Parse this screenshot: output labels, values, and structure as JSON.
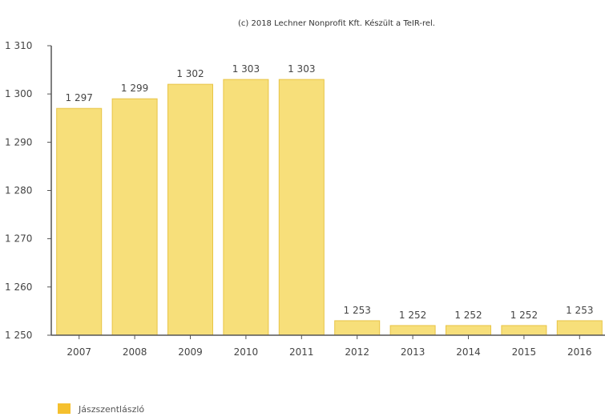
{
  "copyright": "(c) 2018 Lechner Nonprofit Kft. Készült a TeIR-rel.",
  "colors": {
    "bar_fill": "#f7df7a",
    "bar_stroke": "#e8c445",
    "legend_swatch": "#f5c02e",
    "axis": "#555555"
  },
  "chart_data": {
    "type": "bar",
    "categories": [
      "2007",
      "2008",
      "2009",
      "2010",
      "2011",
      "2012",
      "2013",
      "2014",
      "2015",
      "2016"
    ],
    "series": [
      {
        "name": "Jászszentlászló",
        "values": [
          1297,
          1299,
          1302,
          1303,
          1303,
          1253,
          1252,
          1252,
          1252,
          1253
        ],
        "value_labels": [
          "1 297",
          "1 299",
          "1 302",
          "1 303",
          "1 303",
          "1 253",
          "1 252",
          "1 252",
          "1 252",
          "1 253"
        ]
      }
    ],
    "ylim": [
      1250,
      1310
    ],
    "yticks": [
      1250,
      1260,
      1270,
      1280,
      1290,
      1300,
      1310
    ],
    "ytick_labels": [
      "1 250",
      "1 260",
      "1 270",
      "1 280",
      "1 290",
      "1 300",
      "1 310"
    ],
    "title": "",
    "xlabel": "",
    "ylabel": "",
    "grid": false,
    "legend_position": "bottom-left"
  }
}
